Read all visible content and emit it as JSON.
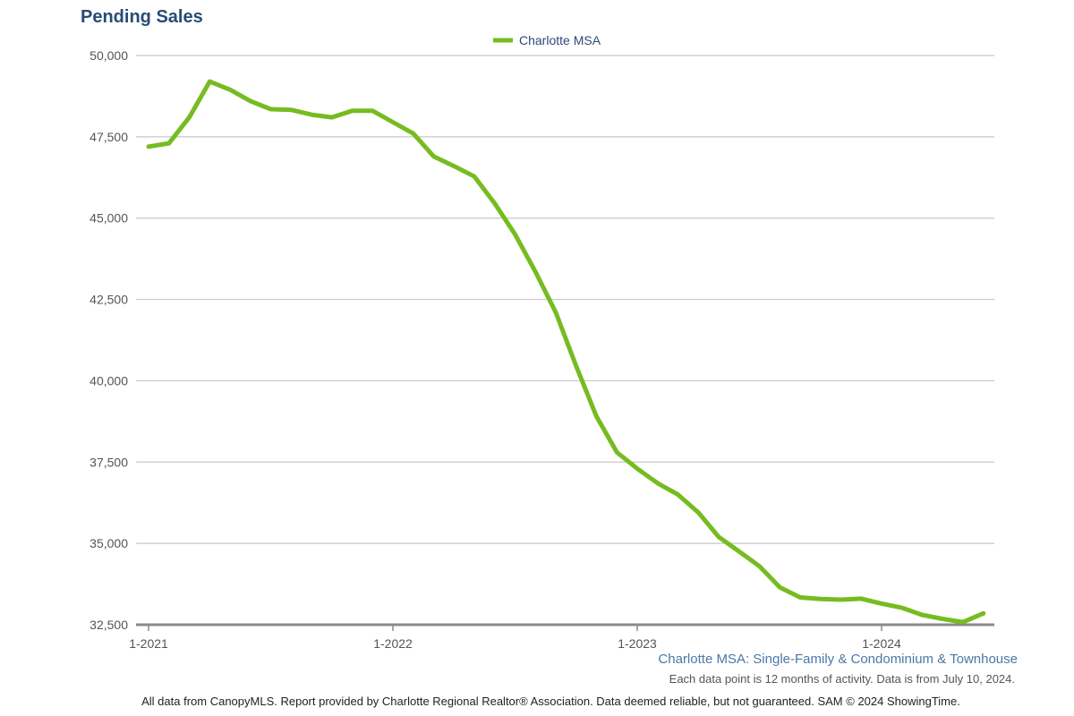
{
  "header": {
    "title": "Pending Sales"
  },
  "footnote": {
    "subtitle": "Charlotte MSA: Single-Family & Condominium & Townhouse",
    "note": "Each data point is 12 months of activity. Data is from July 10, 2024.",
    "source": "All data from CanopyMLS. Report provided by Charlotte Regional Realtor® Association. Data deemed reliable, but not guaranteed. SAM © 2024 ShowingTime."
  },
  "chart_data": {
    "type": "line",
    "title": "Pending Sales",
    "legend_position": "top-center",
    "grid": true,
    "ylim": [
      32500,
      50000
    ],
    "yticks": [
      {
        "value": 32500,
        "label": "32,500"
      },
      {
        "value": 35000,
        "label": "35,000"
      },
      {
        "value": 37500,
        "label": "37,500"
      },
      {
        "value": 40000,
        "label": "40,000"
      },
      {
        "value": 42500,
        "label": "42,500"
      },
      {
        "value": 45000,
        "label": "45,000"
      },
      {
        "value": 47500,
        "label": "47,500"
      },
      {
        "value": 50000,
        "label": "50,000"
      }
    ],
    "x": [
      "1-2021",
      "2-2021",
      "3-2021",
      "4-2021",
      "5-2021",
      "6-2021",
      "7-2021",
      "8-2021",
      "9-2021",
      "10-2021",
      "11-2021",
      "12-2021",
      "1-2022",
      "2-2022",
      "3-2022",
      "4-2022",
      "5-2022",
      "6-2022",
      "7-2022",
      "8-2022",
      "9-2022",
      "10-2022",
      "11-2022",
      "12-2022",
      "1-2023",
      "2-2023",
      "3-2023",
      "4-2023",
      "5-2023",
      "6-2023",
      "7-2023",
      "8-2023",
      "9-2023",
      "10-2023",
      "11-2023",
      "12-2023",
      "1-2024",
      "2-2024",
      "3-2024",
      "4-2024",
      "5-2024",
      "6-2024"
    ],
    "xtick_labels": [
      "1-2021",
      "1-2022",
      "1-2023",
      "1-2024"
    ],
    "series": [
      {
        "name": "Charlotte MSA",
        "color": "#76bc21",
        "values": [
          47200,
          47300,
          48100,
          49200,
          48950,
          48600,
          48350,
          48330,
          48180,
          48100,
          48300,
          48300,
          47950,
          47600,
          46900,
          46600,
          46280,
          45450,
          44500,
          43350,
          42100,
          40450,
          38900,
          37800,
          37300,
          36850,
          36500,
          35950,
          35200,
          34750,
          34300,
          33650,
          33340,
          33290,
          33270,
          33300,
          33150,
          33020,
          32800,
          32680,
          32580,
          32850
        ]
      }
    ]
  }
}
